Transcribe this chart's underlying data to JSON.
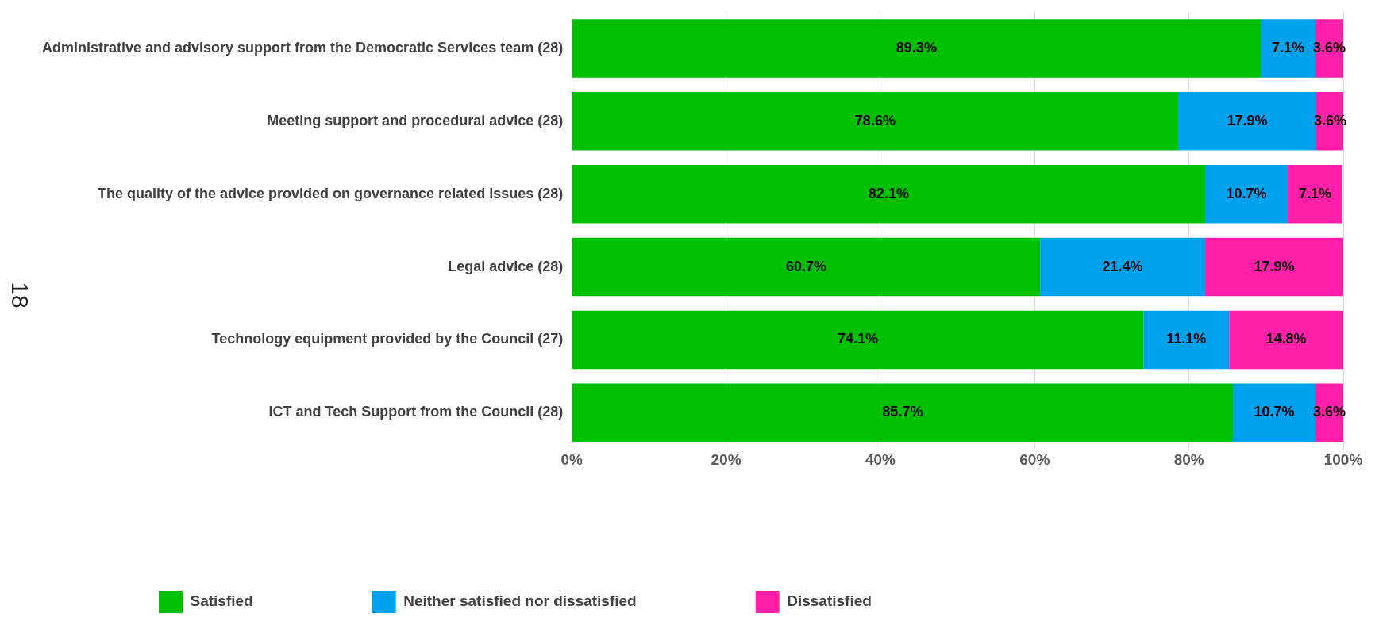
{
  "chart_data": {
    "type": "bar",
    "orientation": "horizontal",
    "stacked": true,
    "categories": [
      "Administrative and advisory support from the Democratic Services team (28)",
      "Meeting support and procedural advice (28)",
      "The quality of the advice provided on governance related issues (28)",
      "Legal advice (28)",
      "Technology equipment provided by the Council (27)",
      "ICT and Tech Support from the Council (28)"
    ],
    "series": [
      {
        "name": "Satisfied",
        "color": "#00c000",
        "values": [
          89.3,
          78.6,
          82.1,
          60.7,
          74.1,
          85.7
        ],
        "value_labels": [
          "89.3%",
          "78.6%",
          "82.1%",
          "60.7%",
          "74.1%",
          "85.7%"
        ]
      },
      {
        "name": "Neither satisfied nor dissatisfied",
        "color": "#00a2ed",
        "values": [
          7.1,
          17.9,
          10.7,
          21.4,
          11.1,
          10.7
        ],
        "value_labels": [
          "7.1%",
          "17.9%",
          "10.7%",
          "21.4%",
          "11.1%",
          "10.7%"
        ]
      },
      {
        "name": "Dissatisfied",
        "color": "#ff1fa8",
        "values": [
          3.6,
          3.6,
          7.1,
          17.9,
          14.8,
          3.6
        ],
        "value_labels": [
          "3.6%",
          "3.6%",
          "7.1%",
          "17.9%",
          "14.8%",
          "3.6%"
        ]
      }
    ],
    "xlim": [
      0,
      100
    ],
    "xticks": [
      {
        "value": 0,
        "label": "0%"
      },
      {
        "value": 20,
        "label": "20%"
      },
      {
        "value": 40,
        "label": "40%"
      },
      {
        "value": 60,
        "label": "60%"
      },
      {
        "value": 80,
        "label": "80%"
      },
      {
        "value": 100,
        "label": "100%"
      }
    ],
    "grid": "x",
    "legend": "bottom",
    "annotations": [
      "18"
    ]
  }
}
